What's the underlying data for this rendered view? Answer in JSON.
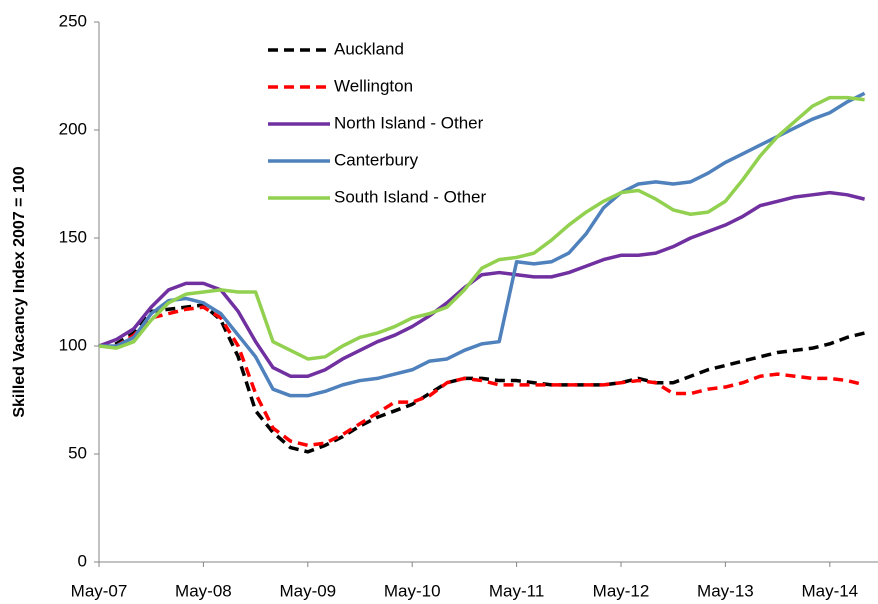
{
  "chart_data": {
    "type": "line",
    "y_label": "Skilled Vacancy Index 2007 = 100",
    "categories": [
      "May-07",
      null,
      null,
      null,
      null,
      null,
      "May-08",
      null,
      null,
      null,
      null,
      null,
      "May-09",
      null,
      null,
      null,
      null,
      null,
      "May-10",
      null,
      null,
      null,
      null,
      null,
      "May-11",
      null,
      null,
      null,
      null,
      null,
      "May-12",
      null,
      null,
      null,
      null,
      null,
      "May-13",
      null,
      null,
      null,
      null,
      null,
      "May-14",
      null,
      null
    ],
    "ylim": [
      0,
      250
    ],
    "yticks": [
      0,
      50,
      100,
      150,
      200,
      250
    ],
    "grid": false,
    "legend": "top-left",
    "series": [
      {
        "name": "Auckland",
        "color": "#000000",
        "dashed": true,
        "values": [
          100,
          101,
          106,
          116,
          117,
          118,
          119,
          112,
          95,
          70,
          60,
          53,
          51,
          54,
          58,
          63,
          67,
          70,
          73,
          78,
          83,
          85,
          85,
          84,
          84,
          83,
          82,
          82,
          82,
          82,
          83,
          85,
          83,
          83,
          86,
          89,
          91,
          93,
          95,
          97,
          98,
          99,
          101,
          104,
          106
        ]
      },
      {
        "name": "Wellington",
        "color": "#ff0000",
        "dashed": true,
        "values": [
          100,
          100,
          105,
          113,
          115,
          117,
          118,
          113,
          100,
          78,
          62,
          56,
          54,
          55,
          59,
          64,
          69,
          74,
          74,
          77,
          83,
          85,
          84,
          82,
          82,
          82,
          82,
          82,
          82,
          82,
          83,
          84,
          83,
          78,
          78,
          80,
          81,
          83,
          86,
          87,
          86,
          85,
          85,
          84,
          82
        ]
      },
      {
        "name": "North Island - Other",
        "color": "#7030a0",
        "dashed": false,
        "values": [
          100,
          103,
          108,
          118,
          126,
          129,
          129,
          126,
          116,
          102,
          90,
          86,
          86,
          89,
          94,
          98,
          102,
          105,
          109,
          114,
          120,
          127,
          133,
          134,
          133,
          132,
          132,
          134,
          137,
          140,
          142,
          142,
          143,
          146,
          150,
          153,
          156,
          160,
          165,
          167,
          169,
          170,
          171,
          170,
          168
        ]
      },
      {
        "name": "Canterbury",
        "color": "#4f81bd",
        "dashed": false,
        "values": [
          100,
          100,
          104,
          115,
          121,
          122,
          120,
          115,
          105,
          95,
          80,
          77,
          77,
          79,
          82,
          84,
          85,
          87,
          89,
          93,
          94,
          98,
          101,
          102,
          139,
          138,
          139,
          143,
          152,
          164,
          171,
          175,
          176,
          175,
          176,
          180,
          185,
          189,
          193,
          197,
          201,
          205,
          208,
          213,
          217
        ]
      },
      {
        "name": "South Island - Other",
        "color": "#92d050",
        "dashed": false,
        "values": [
          100,
          99,
          102,
          112,
          120,
          124,
          125,
          126,
          125,
          125,
          102,
          98,
          94,
          95,
          100,
          104,
          106,
          109,
          113,
          115,
          118,
          126,
          136,
          140,
          141,
          143,
          149,
          156,
          162,
          167,
          171,
          172,
          168,
          163,
          161,
          162,
          167,
          177,
          188,
          197,
          204,
          211,
          215,
          215,
          214
        ]
      }
    ]
  }
}
